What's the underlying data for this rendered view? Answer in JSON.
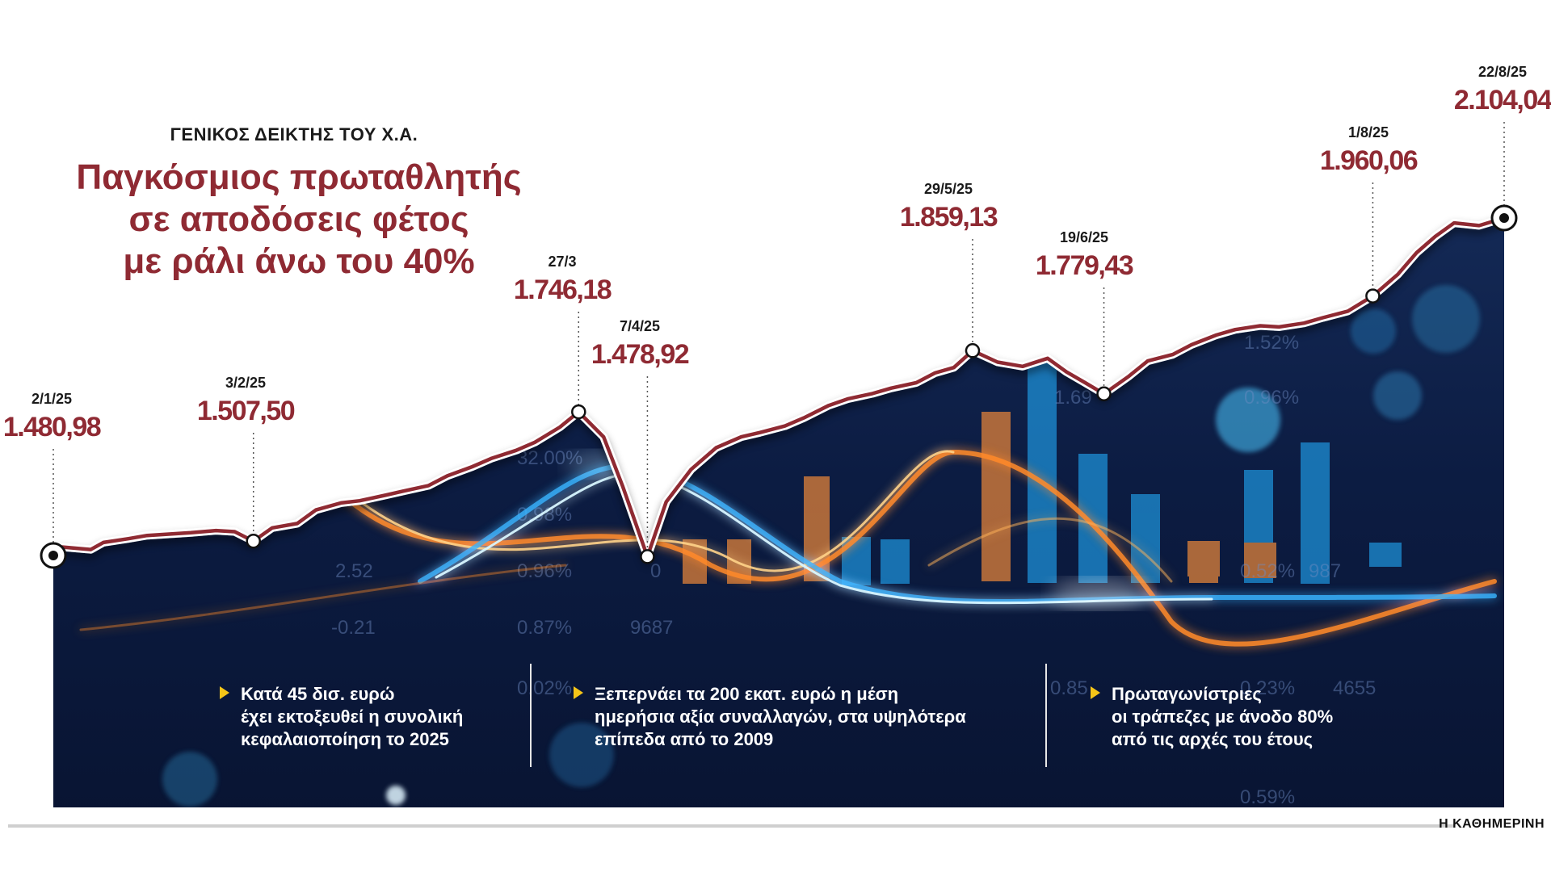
{
  "subtitle": "ΓΕΝΙΚΟΣ ΔΕΙΚΤΗΣ ΤΟΥ Χ.Α.",
  "headline": [
    "Παγκόσμιος πρωταθλητής",
    "σε αποδόσεις φέτος",
    "με ράλι άνω του 40%"
  ],
  "notes": [
    [
      "Κατά 45 δισ. ευρώ",
      "έχει εκτοξευθεί η συνολική",
      "κεφαλαιοποίηση το 2025"
    ],
    [
      "Ξεπερνάει τα 200 εκατ. ευρώ η μέση",
      "ημερήσια αξία συναλλαγών, στα υψηλότερα",
      "επίπεδα από το 2009"
    ],
    [
      "Πρωταγωνίστριες",
      "οι τράπεζες με άνοδο 80%",
      "από τις αρχές του έτους"
    ]
  ],
  "credit": "Η ΚΑΘΗΜΕΡΙΝΗ",
  "colors": {
    "accent": "#8f2a33",
    "line": "#8f2a33",
    "background_dark": "#0a1633",
    "bullet": "#f5c518"
  },
  "chart_data": {
    "type": "line",
    "x_range": [
      "2/1/25",
      "22/8/25"
    ],
    "y_range": [
      1450,
      2150
    ],
    "series": [
      {
        "x": [
          "2/1/25",
          "3/1/25",
          "8/1/25",
          "10/1/25",
          "14/1/25",
          "17/1/25",
          "21/1/25",
          "24/1/25",
          "28/1/25",
          "31/1/25",
          "3/2/25",
          "6/2/25",
          "10/2/25",
          "13/2/25",
          "17/2/25",
          "20/2/25",
          "24/2/25",
          "27/2/25",
          "3/3/25",
          "6/3/25",
          "10/3/25",
          "13/3/25",
          "17/3/25",
          "20/3/25",
          "24/3/25",
          "27/3/25",
          "31/3/25",
          "3/4/25",
          "7/4/25",
          "10/4/25",
          "14/4/25",
          "18/4/25",
          "22/4/25",
          "25/4/25",
          "29/4/25",
          "2/5/25",
          "6/5/25",
          "9/5/25",
          "13/5/25",
          "16/5/25",
          "20/5/25",
          "23/5/25",
          "26/5/25",
          "29/5/25",
          "2/6/25",
          "6/6/25",
          "10/6/25",
          "13/6/25",
          "16/6/25",
          "19/6/25",
          "23/6/25",
          "26/6/25",
          "30/6/25",
          "3/7/25",
          "7/7/25",
          "10/7/25",
          "14/7/25",
          "17/7/25",
          "21/7/25",
          "24/7/25",
          "28/7/25",
          "1/8/25",
          "5/8/25",
          "8/8/25",
          "11/8/25",
          "14/8/25",
          "18/8/25",
          "22/8/25"
        ],
        "values": [
          1480.98,
          1497,
          1492,
          1505,
          1512,
          1518,
          1521,
          1523,
          1527,
          1525,
          1507.5,
          1532,
          1540,
          1565,
          1578,
          1582,
          1592,
          1600,
          1610,
          1628,
          1645,
          1660,
          1675,
          1690,
          1718,
          1746.18,
          1700,
          1610,
          1478.92,
          1580,
          1640,
          1680,
          1700,
          1708,
          1720,
          1735,
          1758,
          1770,
          1780,
          1790,
          1800,
          1818,
          1828,
          1859.13,
          1838,
          1830,
          1845,
          1820,
          1800,
          1779.43,
          1812,
          1840,
          1852,
          1870,
          1888,
          1898,
          1905,
          1903,
          1910,
          1920,
          1932,
          1960.06,
          2000,
          2040,
          2070,
          2095,
          2090,
          2104.04
        ]
      }
    ],
    "annotations": [
      {
        "date": "2/1/25",
        "label": "1.480,98"
      },
      {
        "date": "3/2/25",
        "label": "1.507,50"
      },
      {
        "date": "27/3",
        "label": "1.746,18"
      },
      {
        "date": "7/4/25",
        "label": "1.478,92"
      },
      {
        "date": "29/5/25",
        "label": "1.859,13"
      },
      {
        "date": "19/6/25",
        "label": "1.779,43"
      },
      {
        "date": "1/8/25",
        "label": "1.960,06"
      },
      {
        "date": "22/8/25",
        "label": "2.104,04"
      }
    ],
    "background_tickers": [
      "32.00%",
      "0.98%",
      "2.52",
      "0.96%",
      "-0.21",
      "0.87%",
      "9687",
      "0",
      "1.52%",
      "0.96%",
      "1.69",
      "0.52%",
      "987",
      "0.23%",
      "4655",
      "0.59%",
      "0.02%",
      "0.85"
    ],
    "grid": false,
    "legend": "none"
  }
}
